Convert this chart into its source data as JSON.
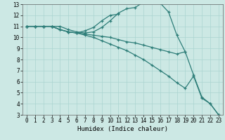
{
  "xlabel": "Humidex (Indice chaleur)",
  "bg_color": "#cce8e4",
  "grid_color": "#aad4d0",
  "line_color": "#2d7d78",
  "xlim": [
    -0.5,
    23.5
  ],
  "ylim": [
    3,
    13
  ],
  "yticks": [
    3,
    4,
    5,
    6,
    7,
    8,
    9,
    10,
    11,
    12,
    13
  ],
  "xticks": [
    0,
    1,
    2,
    3,
    4,
    5,
    6,
    7,
    8,
    9,
    10,
    11,
    12,
    13,
    14,
    15,
    16,
    17,
    18,
    19,
    20,
    21,
    22,
    23
  ],
  "lines": [
    {
      "x": [
        0,
        1,
        2,
        3,
        4,
        5,
        6,
        7,
        8,
        9,
        10,
        11,
        12,
        13,
        14,
        15,
        16,
        17,
        18,
        19
      ],
      "y": [
        11,
        11,
        11,
        11,
        11,
        10.7,
        10.5,
        10.4,
        10.5,
        10.9,
        11.5,
        12.2,
        12.6,
        12.7,
        13.2,
        13.3,
        13.1,
        12.3,
        10.2,
        8.7
      ]
    },
    {
      "x": [
        0,
        1,
        2,
        3,
        4,
        5,
        6,
        7,
        8,
        9,
        10,
        11
      ],
      "y": [
        11,
        11,
        11,
        11,
        10.7,
        10.5,
        10.4,
        10.6,
        10.9,
        11.5,
        12.0,
        12.1
      ]
    },
    {
      "x": [
        0,
        1,
        2,
        3,
        4,
        5,
        6,
        7,
        8,
        9,
        10,
        11,
        12,
        13,
        14,
        15,
        16,
        17,
        18,
        19,
        20,
        21,
        22,
        23
      ],
      "y": [
        11,
        11,
        11,
        11,
        10.7,
        10.5,
        10.4,
        10.3,
        10.2,
        10.1,
        10.0,
        9.8,
        9.6,
        9.5,
        9.3,
        9.1,
        8.9,
        8.7,
        8.5,
        8.7,
        6.6,
        4.6,
        4.0,
        3.0
      ]
    },
    {
      "x": [
        0,
        1,
        2,
        3,
        4,
        5,
        6,
        7,
        8,
        9,
        10,
        11,
        12,
        13,
        14,
        15,
        16,
        17,
        18,
        19,
        20,
        21,
        22,
        23
      ],
      "y": [
        11,
        11,
        11,
        11,
        10.7,
        10.5,
        10.4,
        10.2,
        10.0,
        9.7,
        9.4,
        9.1,
        8.8,
        8.4,
        8.0,
        7.5,
        7.0,
        6.5,
        5.9,
        5.4,
        6.5,
        4.5,
        4.0,
        3.0
      ]
    }
  ]
}
